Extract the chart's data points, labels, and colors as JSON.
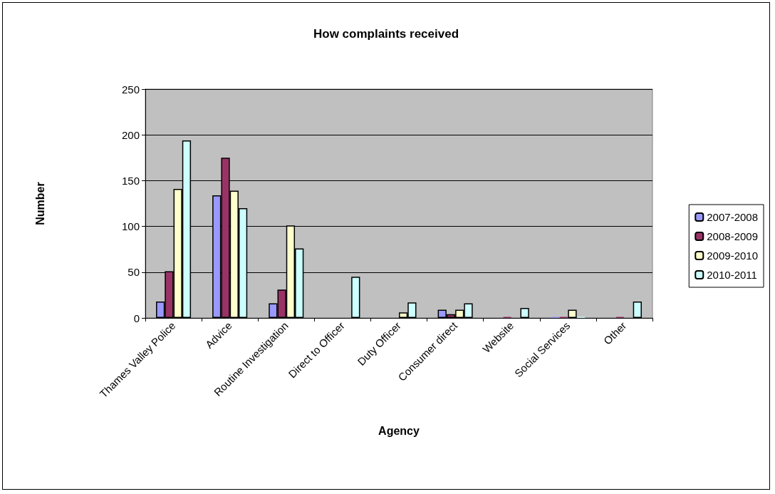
{
  "chart_data": {
    "type": "bar",
    "title": "How complaints received",
    "xlabel": "Agency",
    "ylabel": "Number",
    "categories": [
      "Thames Valley Police",
      "Advice",
      "Routine Investigation",
      "Direct to Officer",
      "Duty Officer",
      "Consumer direct",
      "Website",
      "Social Services",
      "Other"
    ],
    "series": [
      {
        "name": "2007-2008",
        "color": "#9999ff",
        "values": [
          18,
          134,
          16,
          0,
          0,
          9,
          0,
          1,
          0
        ]
      },
      {
        "name": "2008-2009",
        "color": "#993366",
        "values": [
          51,
          175,
          31,
          0,
          0,
          4,
          1,
          1,
          1
        ]
      },
      {
        "name": "2009-2010",
        "color": "#ffffcc",
        "values": [
          141,
          139,
          101,
          0,
          6,
          9,
          0,
          9,
          0
        ]
      },
      {
        "name": "2010-2011",
        "color": "#ccffff",
        "values": [
          194,
          120,
          76,
          45,
          17,
          16,
          11,
          1,
          18
        ]
      }
    ],
    "ylim": [
      0,
      250
    ],
    "yticks": [
      0,
      50,
      100,
      150,
      200,
      250
    ],
    "grid": "y",
    "legend": "right"
  }
}
